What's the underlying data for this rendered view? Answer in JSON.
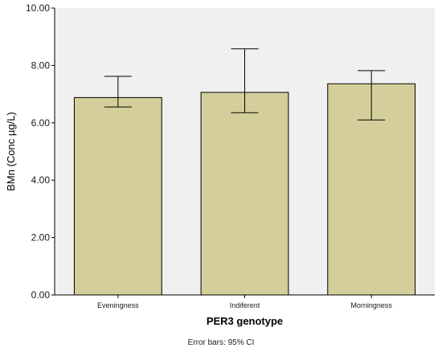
{
  "chart_data": {
    "type": "bar",
    "categories": [
      "Eveningness",
      "Indiferent",
      "Morningness"
    ],
    "values": [
      6.88,
      7.06,
      7.36
    ],
    "error_bars": {
      "lower": [
        6.55,
        6.35,
        6.1
      ],
      "upper": [
        7.62,
        8.58,
        7.82
      ]
    },
    "xlabel": "PER3 genotype",
    "ylabel": "BMn (Conc µg/L)",
    "ylim": [
      0,
      10
    ],
    "yticks": [
      "0.00",
      "2.00",
      "4.00",
      "6.00",
      "8.00",
      "10.00"
    ],
    "footnote": "Error bars: 95% CI",
    "grid": false,
    "colors": {
      "bar_fill": "#d4cf9a",
      "bar_stroke": "#000000",
      "plot_bg": "#f0f0f0",
      "axis": "#000000"
    }
  }
}
